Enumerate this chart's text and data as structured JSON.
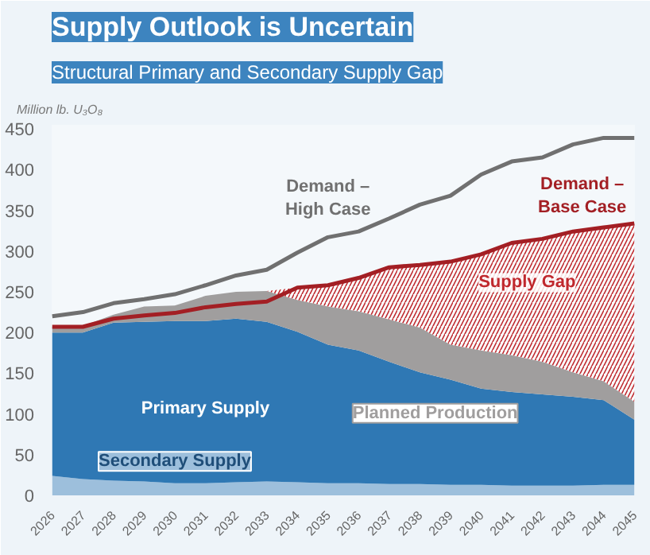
{
  "chart_data": {
    "type": "area",
    "stacked": true,
    "title": "Supply Outlook is Uncertain",
    "subtitle": "Structural Primary and Secondary Supply Gap",
    "ylabel": "Million lb. U₃O₈",
    "categories": [
      "2026",
      "2027",
      "2028",
      "2029",
      "2030",
      "2031",
      "2032",
      "2033",
      "2034",
      "2035",
      "2036",
      "2037",
      "2038",
      "2039",
      "2040",
      "2041",
      "2042",
      "2043",
      "2044",
      "2045"
    ],
    "ylim": [
      0,
      455
    ],
    "yticks": [
      0,
      50,
      100,
      150,
      200,
      250,
      300,
      350,
      400,
      450
    ],
    "grid": false,
    "series": [
      {
        "name": "Secondary Supply",
        "color": "#9dbfdc",
        "values": [
          24,
          20,
          18,
          17,
          15,
          15,
          16,
          17,
          16,
          15,
          15,
          14,
          14,
          13,
          13,
          12,
          12,
          12,
          13,
          13
        ]
      },
      {
        "name": "Primary Supply",
        "color": "#2f78b4",
        "values": [
          176,
          180,
          194,
          196,
          199,
          199,
          201,
          196,
          185,
          170,
          163,
          150,
          137,
          129,
          118,
          115,
          112,
          109,
          104,
          80
        ]
      },
      {
        "name": "Planned Production",
        "color": "#a09e9e",
        "values": [
          7,
          8,
          10,
          19,
          19,
          31,
          33,
          38,
          39,
          47,
          48,
          52,
          55,
          43,
          47,
          45,
          40,
          30,
          23,
          22
        ]
      },
      {
        "name": "Supply Gap",
        "color": "#c0282d",
        "values": [
          0,
          0,
          0,
          0,
          0,
          0,
          0,
          0,
          15,
          26,
          41,
          64,
          77,
          102,
          118,
          138,
          151,
          173,
          189,
          219
        ]
      },
      {
        "type": "line",
        "name": "Demand –\nHigh Case",
        "color": "#707070",
        "values": [
          220,
          225,
          236,
          241,
          247,
          258,
          270,
          277,
          298,
          317,
          324,
          340,
          357,
          368,
          394,
          410,
          415,
          431,
          439,
          439
        ]
      },
      {
        "type": "line",
        "name": "Demand –\nBase Case",
        "color": "#a31f24",
        "values": [
          207,
          207,
          217,
          221,
          224,
          231,
          235,
          238,
          255,
          258,
          267,
          280,
          283,
          287,
          296,
          310,
          315,
          324,
          329,
          334
        ]
      }
    ]
  }
}
